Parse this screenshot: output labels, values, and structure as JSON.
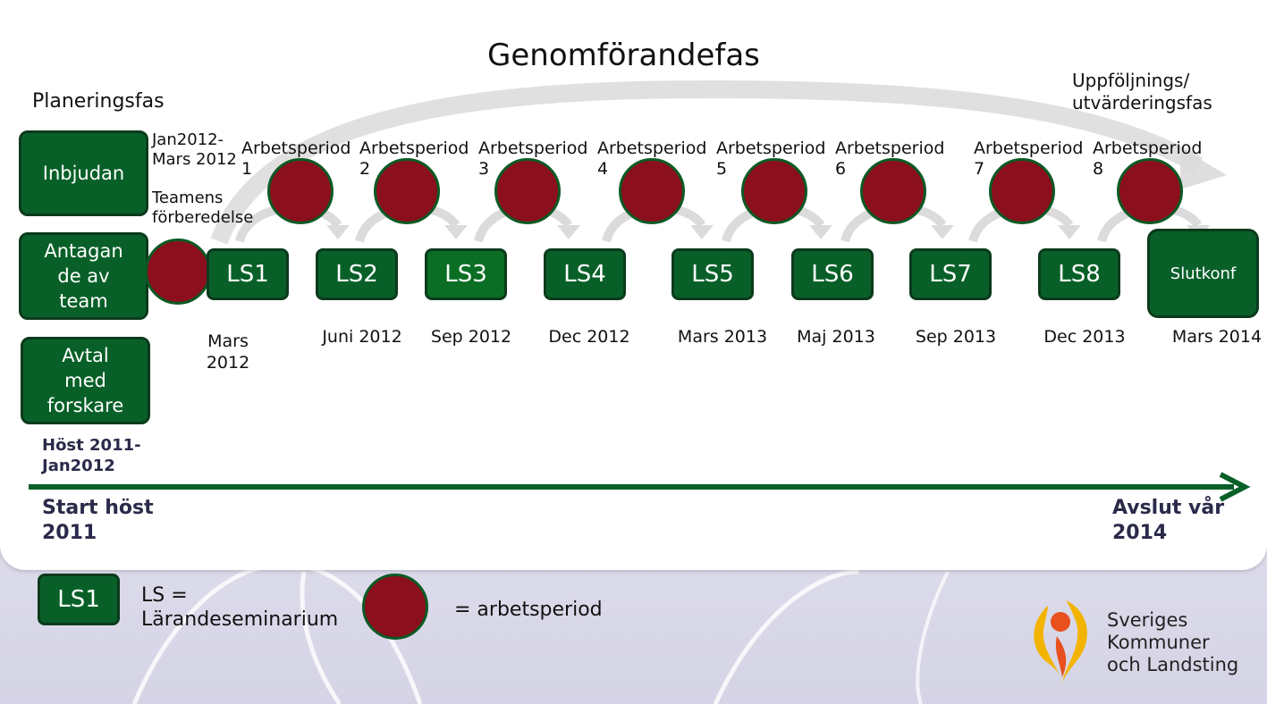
{
  "title": "Genomförandefas",
  "planning_label": "Planeringsfas",
  "followup_label": "Uppföljnings/\nutvärderingsfas",
  "planning_boxes": [
    "Inbjudan",
    "Antagan\nde av\nteam",
    "Avtal\nmed\nforskare"
  ],
  "prep_dates": "Jan2012-\nMars 2012",
  "prep_label": "Teamens\nförberedelse",
  "host_label": "Höst 2011-\nJan2012",
  "periods": [
    "Arbetsperiod\n1",
    "Arbetsperiod\n2",
    "Arbetsperiod\n3",
    "Arbetsperiod\n4",
    "Arbetsperiod\n5",
    "Arbetsperiod\n6",
    "Arbetsperiod\n7",
    "Arbetsperiod\n8"
  ],
  "seminars": [
    {
      "label": "LS1",
      "date": "Mars\n2012"
    },
    {
      "label": "LS2",
      "date": "Juni 2012"
    },
    {
      "label": "LS3",
      "date": "Sep 2012"
    },
    {
      "label": "LS4",
      "date": "Dec 2012"
    },
    {
      "label": "LS5",
      "date": "Mars 2013"
    },
    {
      "label": "LS6",
      "date": "Maj 2013"
    },
    {
      "label": "LS7",
      "date": "Sep 2013"
    },
    {
      "label": "LS8",
      "date": "Dec 2013"
    }
  ],
  "final_box": {
    "label": "Slutkonf",
    "date": "Mars 2014"
  },
  "timeline_start": "Start höst\n2011",
  "timeline_end": "Avslut vår\n2014",
  "legend": {
    "ls_box": "LS1",
    "ls_text": "LS =\nLärandeseminarium",
    "period_text": "= arbetsperiod"
  },
  "logo_text": "Sveriges\nKommuner\noch Landsting",
  "colors": {
    "green": "#086028",
    "dark_green": "#0b3a1c",
    "red": "#8b0f1c",
    "ls3_green": "#0a6e24"
  }
}
